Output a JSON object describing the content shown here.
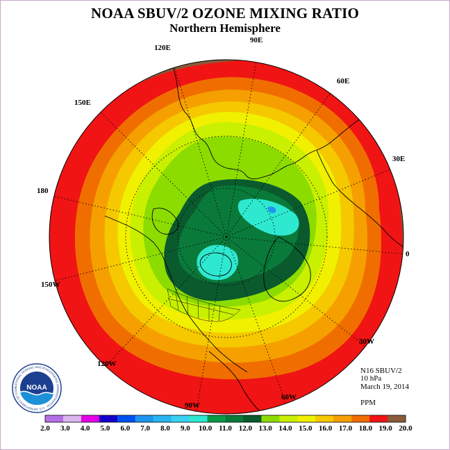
{
  "title": "NOAA SBUV/2 OZONE MIXING RATIO",
  "subtitle": "Northern Hemisphere",
  "info": {
    "satellite": "N16 SBUV/2",
    "level": "10 hPa",
    "date": "March 19, 2014",
    "units": "PPM"
  },
  "longitude_labels": [
    "120E",
    "90E",
    "60E",
    "150E",
    "30E",
    "180",
    "0",
    "150W",
    "30W",
    "120W",
    "90W",
    "60W"
  ],
  "logo": {
    "text": "NOAA",
    "ring_text": "NATIONAL OCEANIC AND ATMOSPHERIC ADMINISTRATION · U.S. DEPARTMENT OF COMMERCE"
  },
  "colors": {
    "ozone_high_core": "#2ee8d0",
    "ozone_dark_green": "#0a6a36",
    "ozone_red": "#f01414",
    "ozone_brown": "#8a5a3a"
  },
  "chart_data": {
    "type": "heatmap",
    "projection": "north polar stereographic",
    "colorbar": {
      "ticks": [
        "2.0",
        "3.0",
        "4.0",
        "5.0",
        "6.0",
        "7.0",
        "8.0",
        "9.0",
        "10.0",
        "11.0",
        "12.0",
        "13.0",
        "14.0",
        "15.0",
        "16.0",
        "17.0",
        "18.0",
        "19.0",
        "20.0"
      ],
      "colors": [
        "#b46ee6",
        "#dcb4f0",
        "#e600e6",
        "#1400c8",
        "#0050f0",
        "#1e96f0",
        "#28b4f0",
        "#38d2f0",
        "#2ee8d0",
        "#0a9b46",
        "#0a7a3a",
        "#0a5a2e",
        "#8cdc00",
        "#c8f000",
        "#f0f000",
        "#f5c800",
        "#f5a000",
        "#f06e00",
        "#f01414",
        "#8a5a3a"
      ]
    }
  }
}
